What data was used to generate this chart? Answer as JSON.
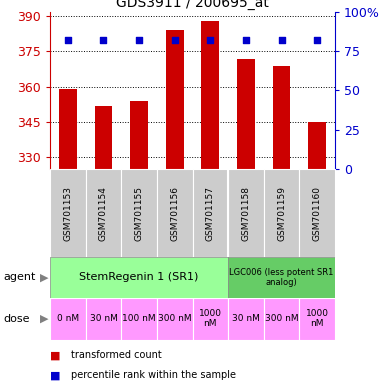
{
  "title": "GDS3911 / 200695_at",
  "samples": [
    "GSM701153",
    "GSM701154",
    "GSM701155",
    "GSM701156",
    "GSM701157",
    "GSM701158",
    "GSM701159",
    "GSM701160"
  ],
  "bar_values": [
    359.0,
    352.0,
    354.0,
    384.0,
    388.0,
    372.0,
    369.0,
    345.0
  ],
  "percentile_values": [
    82,
    82,
    82,
    82,
    82,
    82,
    82,
    82
  ],
  "ymin": 325,
  "ymax": 392,
  "yticks": [
    330,
    345,
    360,
    375,
    390
  ],
  "y2ticks": [
    0,
    25,
    50,
    75,
    100
  ],
  "y2tick_labels": [
    "0",
    "25",
    "50",
    "75",
    "100%"
  ],
  "bar_color": "#cc0000",
  "dot_color": "#0000cc",
  "grid_color": "#000000",
  "title_color": "#000000",
  "left_axis_color": "#cc0000",
  "right_axis_color": "#0000cc",
  "agent_labels": [
    "StemRegenin 1 (SR1)",
    "LGC006 (less potent SR1\nanalog)"
  ],
  "agent_colors": [
    "#99ff99",
    "#66cc66"
  ],
  "dose_labels": [
    "0 nM",
    "30 nM",
    "100 nM",
    "300 nM",
    "1000\nnM",
    "30 nM",
    "300 nM",
    "1000\nnM"
  ],
  "dose_color": "#ff99ff",
  "sample_bg": "#cccccc",
  "legend_red_label": "transformed count",
  "legend_blue_label": "percentile rank within the sample"
}
